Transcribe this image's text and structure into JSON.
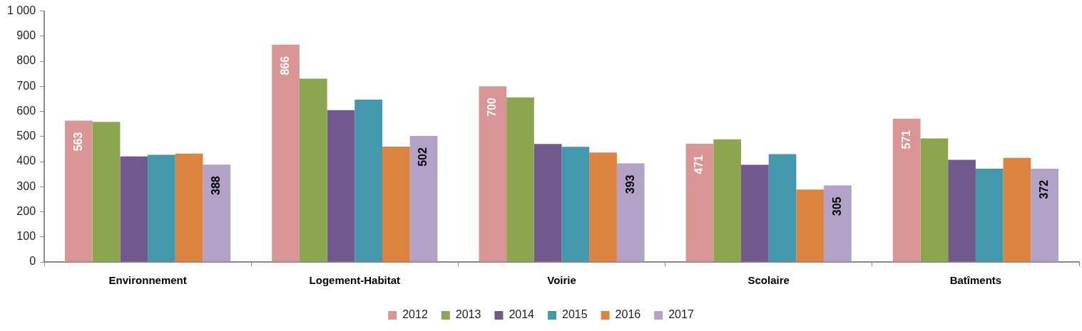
{
  "chart_data": {
    "type": "bar",
    "categories": [
      "Environnement",
      "Logement-Habitat",
      "Voirie",
      "Scolaire",
      "Batîments"
    ],
    "series": [
      {
        "name": "2012",
        "color": "#d99694",
        "values": [
          563,
          866,
          700,
          471,
          571
        ],
        "value_labels": [
          "563",
          "866",
          "700",
          "471",
          "571"
        ]
      },
      {
        "name": "2013",
        "color": "#8ba64e",
        "values": [
          558,
          731,
          656,
          489,
          492
        ]
      },
      {
        "name": "2014",
        "color": "#72598d",
        "values": [
          421,
          605,
          470,
          387,
          407
        ]
      },
      {
        "name": "2015",
        "color": "#4398ae",
        "values": [
          427,
          647,
          459,
          430,
          372
        ]
      },
      {
        "name": "2016",
        "color": "#dc843f",
        "values": [
          432,
          460,
          436,
          289,
          415
        ]
      },
      {
        "name": "2017",
        "color": "#b3a2c8",
        "values": [
          388,
          502,
          393,
          305,
          372
        ],
        "value_labels": [
          "388",
          "502",
          "393",
          "305",
          "372"
        ]
      }
    ],
    "ylim": [
      0,
      1000
    ],
    "yticks": [
      0,
      100,
      200,
      300,
      400,
      500,
      600,
      700,
      800,
      900,
      {
        "value": 1000,
        "label": "1 000"
      }
    ],
    "legend": "bottom"
  }
}
